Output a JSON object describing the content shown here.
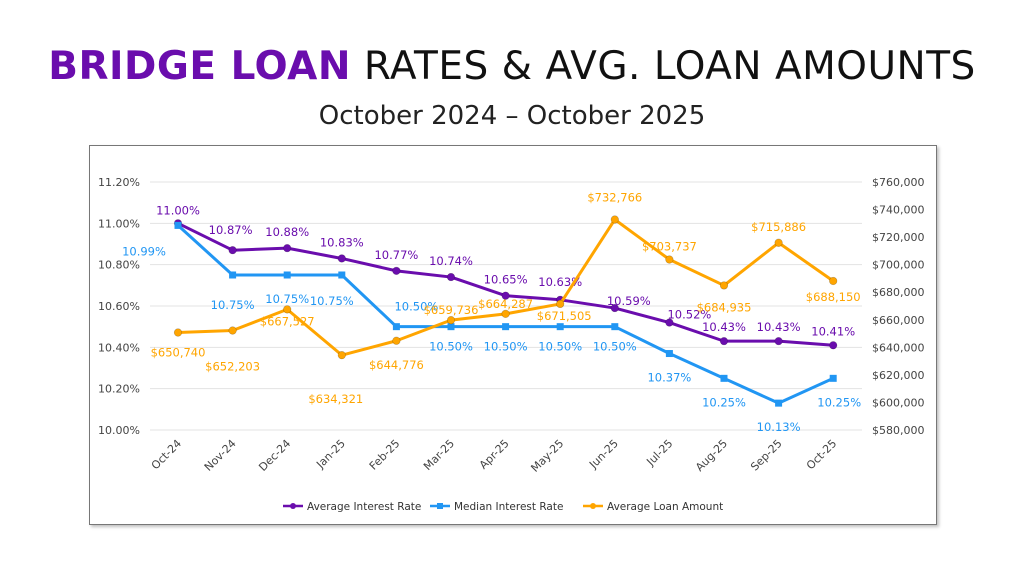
{
  "title": {
    "highlight": "BRIDGE LOAN",
    "rest": " RATES & AVG. LOAN AMOUNTS"
  },
  "subtitle": "October 2024 – October 2025",
  "chart_data": {
    "type": "line",
    "categories": [
      "Oct-24",
      "Nov-24",
      "Dec-24",
      "Jan-25",
      "Feb-25",
      "Mar-25",
      "Apr-25",
      "May-25",
      "Jun-25",
      "Jul-25",
      "Aug-25",
      "Sep-25",
      "Oct-25"
    ],
    "y_left": {
      "range": [
        10.0,
        11.2
      ],
      "ticks": [
        "10.00%",
        "10.20%",
        "10.40%",
        "10.60%",
        "10.80%",
        "11.00%",
        "11.20%"
      ]
    },
    "y_right": {
      "range": [
        580000,
        760000
      ],
      "ticks": [
        "$580,000",
        "$600,000",
        "$620,000",
        "$640,000",
        "$660,000",
        "$680,000",
        "$700,000",
        "$720,000",
        "$740,000",
        "$760,000"
      ]
    },
    "grid": true,
    "legend_placement": "bottom",
    "series": [
      {
        "name": "Average Interest Rate",
        "axis": "left",
        "color": "#6a0dad",
        "marker": "circle",
        "values": [
          11.0,
          10.87,
          10.88,
          10.83,
          10.77,
          10.74,
          10.65,
          10.63,
          10.59,
          10.52,
          10.43,
          10.43,
          10.41
        ],
        "labels": [
          "11.00%",
          "10.87%",
          "10.88%",
          "10.83%",
          "10.77%",
          "10.74%",
          "10.65%",
          "10.63%",
          "10.59%",
          "10.52%",
          "10.43%",
          "10.43%",
          "10.41%"
        ]
      },
      {
        "name": "Median Interest Rate",
        "axis": "left",
        "color": "#2196f3",
        "marker": "square",
        "values": [
          10.99,
          10.75,
          10.75,
          10.75,
          10.5,
          10.5,
          10.5,
          10.5,
          10.5,
          10.37,
          10.25,
          10.13,
          10.25
        ],
        "labels": [
          "10.99%",
          "10.75%",
          "10.75%",
          "10.75%",
          "10.50%",
          "10.50%",
          "10.50%",
          "10.50%",
          "10.50%",
          "10.37%",
          "10.25%",
          "10.13%",
          "10.25%"
        ]
      },
      {
        "name": "Average Loan Amount",
        "axis": "right",
        "color": "#ffa500",
        "marker": "circle",
        "values": [
          650740,
          652203,
          667527,
          634321,
          644776,
          659736,
          664287,
          671505,
          732766,
          703737,
          684935,
          715886,
          688150
        ],
        "labels": [
          "$650,740",
          "$652,203",
          "$667,527",
          "$634,321",
          "$644,776",
          "$659,736",
          "$664,287",
          "$671,505",
          "$732,766",
          "$703,737",
          "$684,935",
          "$715,886",
          "$688,150"
        ]
      }
    ]
  }
}
